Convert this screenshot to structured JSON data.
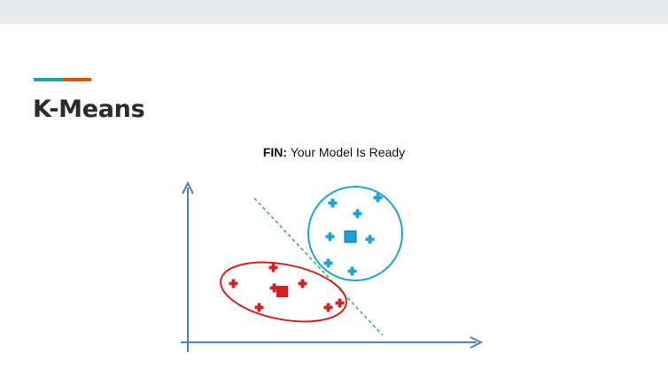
{
  "slide": {
    "title": "K-Means",
    "accent_colors": [
      "#26a69a",
      "#e65100"
    ]
  },
  "figure": {
    "caption_bold": "FIN:",
    "caption_text": " Your Model Is Ready",
    "colors": {
      "axis": "#4f7fc0",
      "cluster_red": "#d61f1f",
      "cluster_blue": "#1aa3d8",
      "separator": "#3aa84a"
    },
    "icons": {
      "point": "plus-marker-icon",
      "centroid": "square-centroid-icon"
    }
  }
}
